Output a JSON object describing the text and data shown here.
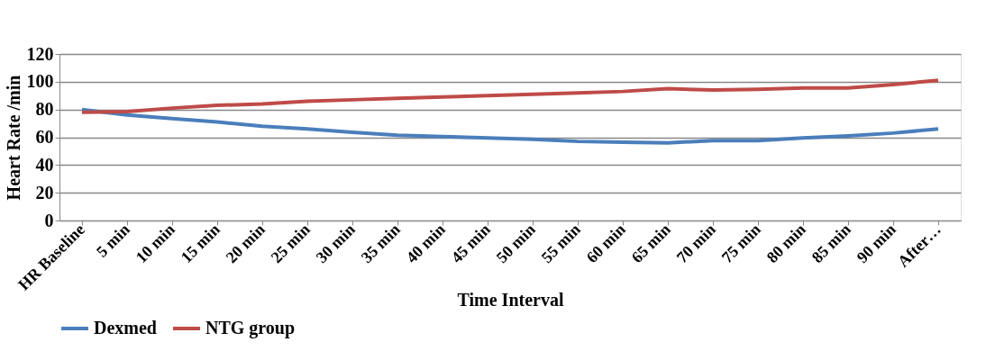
{
  "chart_data": {
    "type": "line",
    "xlabel": "Time Interval",
    "ylabel": "Heart Rate /min",
    "categories": [
      "HR Baseline",
      "5 min",
      "10 min",
      "15 min",
      "20 min",
      "25 min",
      "30 min",
      "35 min",
      "40 min",
      "45 min",
      "50 min",
      "55 min",
      "60 min",
      "65 min",
      "70 min",
      "75 min",
      "80 min",
      "85 min",
      "90  min",
      "After…"
    ],
    "series": [
      {
        "name": "Dexmed",
        "color": "#4a7ebb",
        "values": [
          80,
          76,
          73.5,
          71,
          68,
          66,
          63.5,
          61.5,
          60.5,
          59.5,
          58.5,
          57,
          56.5,
          56,
          57.5,
          57.5,
          59.5,
          61,
          63,
          66
        ]
      },
      {
        "name": "NTG group",
        "color": "#be4b48",
        "values": [
          78,
          78.5,
          81,
          83,
          84,
          86,
          87,
          88,
          89,
          90,
          91,
          92,
          93,
          95,
          94,
          94.5,
          95.5,
          95.5,
          98,
          101
        ]
      }
    ],
    "ylim": [
      0,
      120
    ],
    "yticks": [
      0,
      20,
      40,
      60,
      80,
      100,
      120
    ],
    "grid": "y",
    "legend": "bottom",
    "marker": "none",
    "line_style": "solid"
  }
}
